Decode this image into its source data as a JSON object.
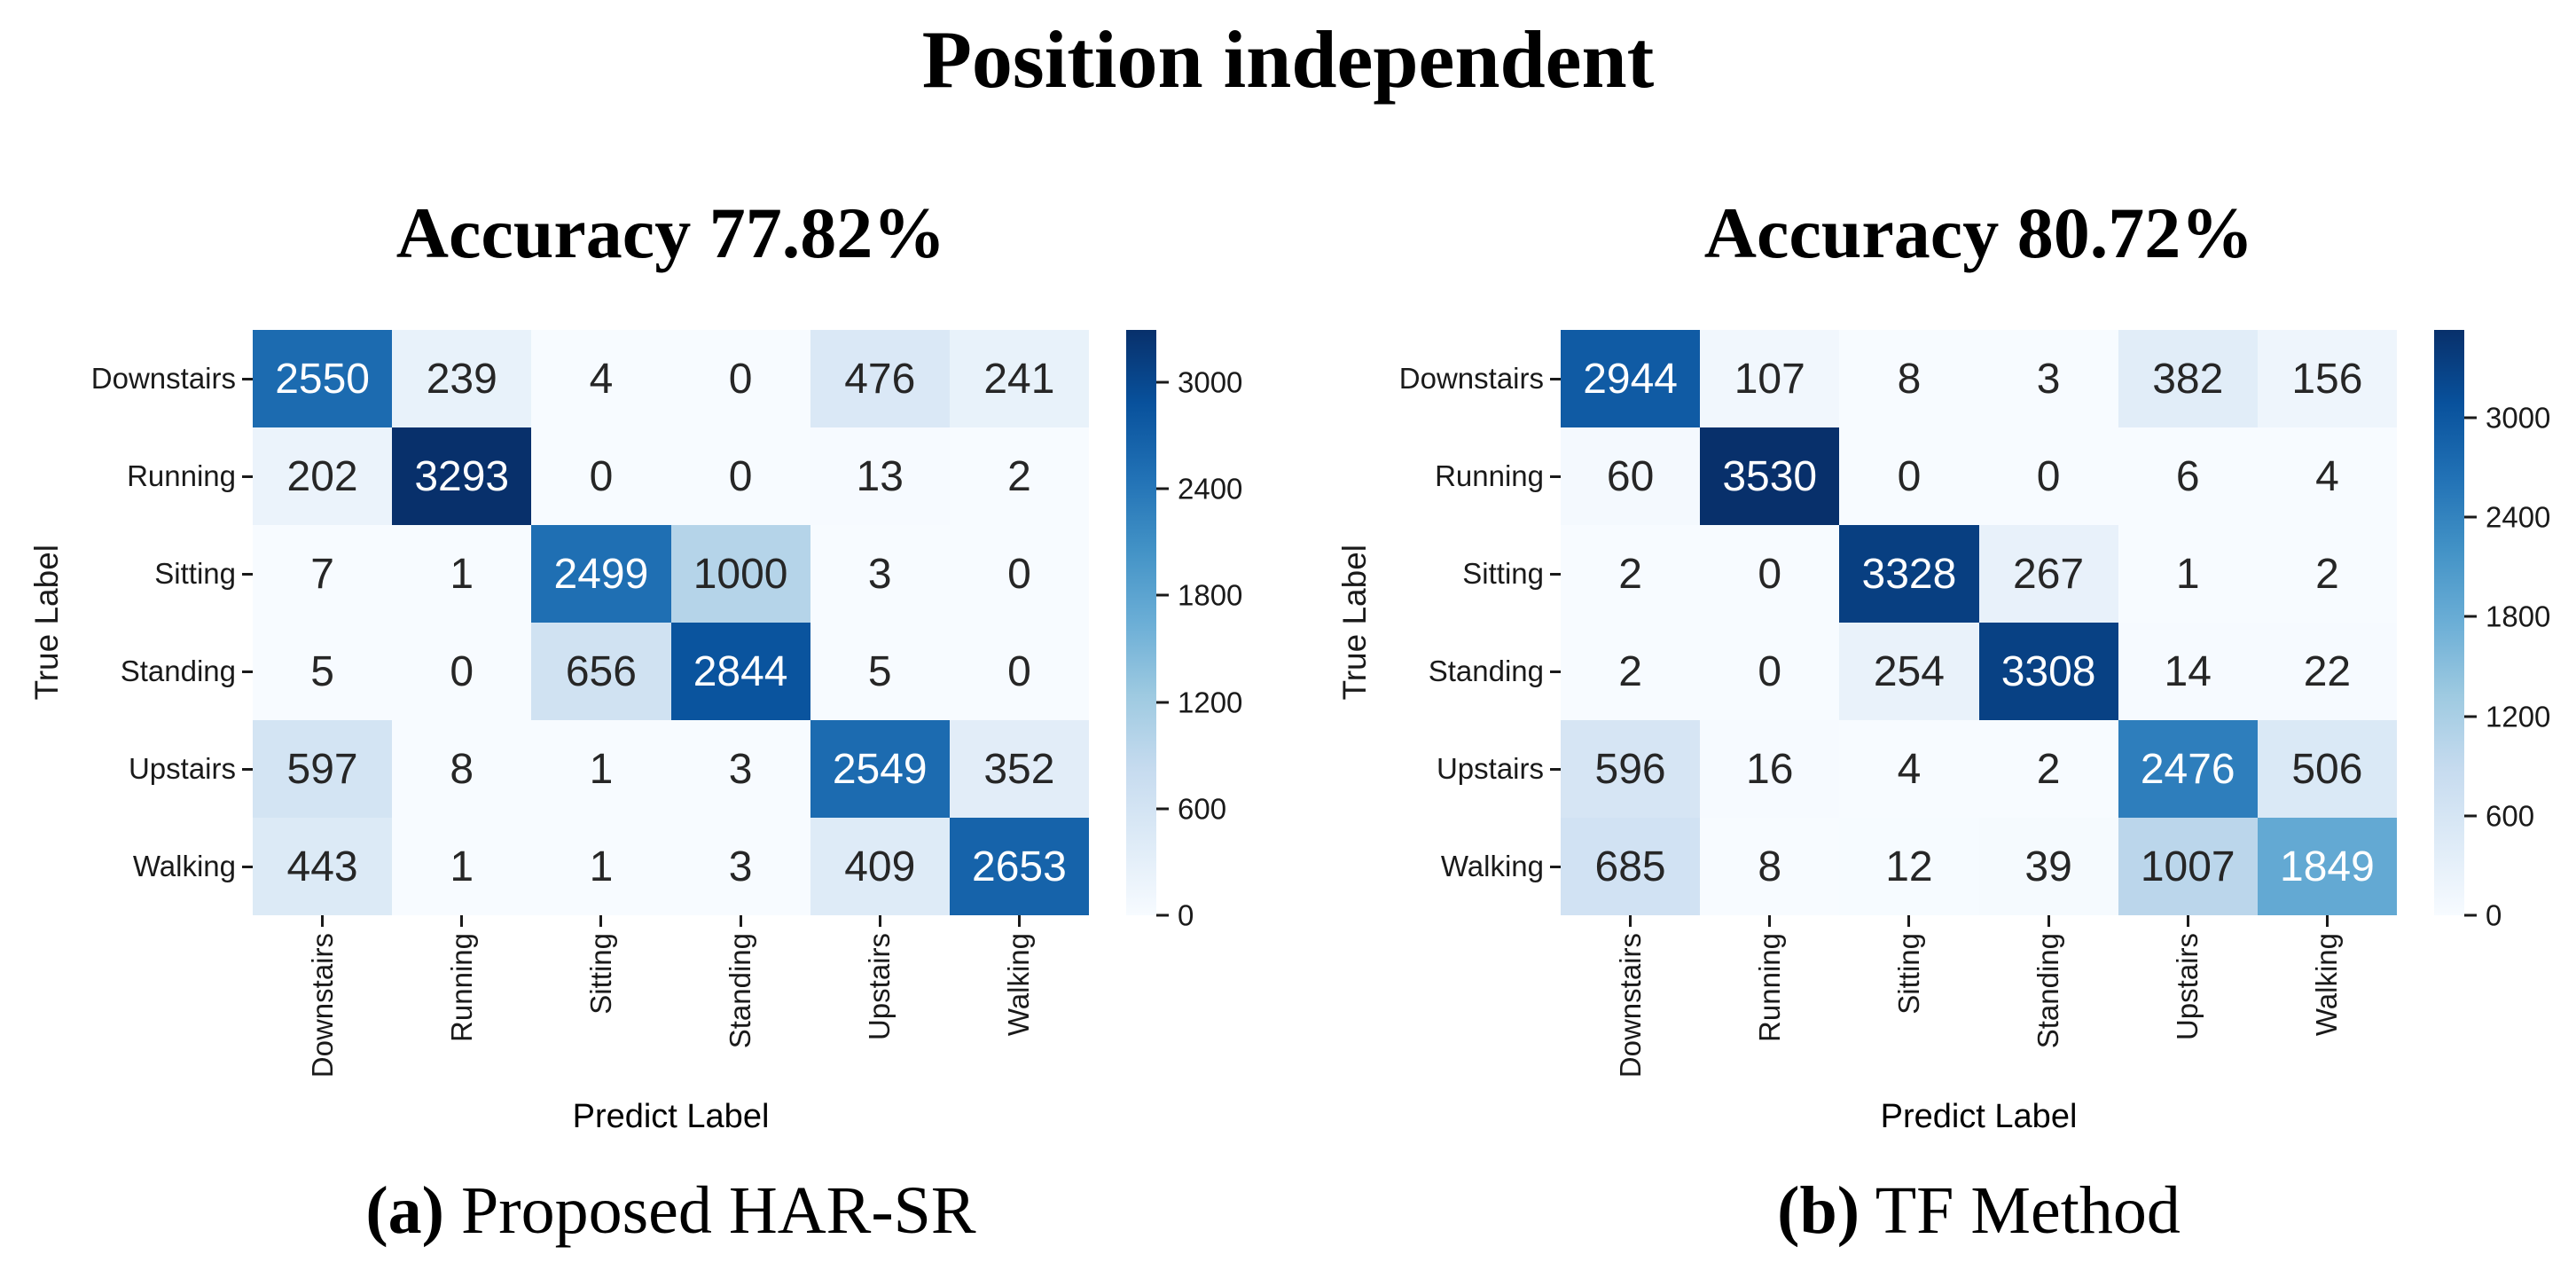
{
  "figure": {
    "title": "Position independent",
    "background": "#ffffff"
  },
  "colors": {
    "colormap_name": "Blues",
    "cmap_stops": [
      "#f7fbff",
      "#deebf7",
      "#c6dbef",
      "#9ecae1",
      "#6baed6",
      "#4292c6",
      "#2171b5",
      "#08519c",
      "#08306b"
    ],
    "annotation_dark": "#262626",
    "annotation_light": "#ffffff",
    "axis_text": "#1a1a1a"
  },
  "chart_data": [
    {
      "type": "heatmap",
      "title": "Accuracy 77.82%",
      "accuracy_pct": 77.82,
      "caption_tag": "(a)",
      "caption_label": "Proposed HAR-SR",
      "xlabel": "Predict Label",
      "ylabel": "True Label",
      "x_categories": [
        "Downstairs",
        "Running",
        "Sitting",
        "Standing",
        "Upstairs",
        "Walking"
      ],
      "y_categories": [
        "Downstairs",
        "Running",
        "Sitting",
        "Standing",
        "Upstairs",
        "Walking"
      ],
      "vmin": 0,
      "colorbar_ticks": [
        0,
        600,
        1200,
        1800,
        2400,
        3000
      ],
      "matrix": [
        [
          2550,
          239,
          4,
          0,
          476,
          241
        ],
        [
          202,
          3293,
          0,
          0,
          13,
          2
        ],
        [
          7,
          1,
          2499,
          1000,
          3,
          0
        ],
        [
          5,
          0,
          656,
          2844,
          5,
          0
        ],
        [
          597,
          8,
          1,
          3,
          2549,
          352
        ],
        [
          443,
          1,
          1,
          3,
          409,
          2653
        ]
      ]
    },
    {
      "type": "heatmap",
      "title": "Accuracy 80.72%",
      "accuracy_pct": 80.72,
      "caption_tag": "(b)",
      "caption_label": "TF Method",
      "xlabel": "Predict Label",
      "ylabel": "True Label",
      "x_categories": [
        "Downstairs",
        "Running",
        "Sitting",
        "Standing",
        "Upstairs",
        "Walking"
      ],
      "y_categories": [
        "Downstairs",
        "Running",
        "Sitting",
        "Standing",
        "Upstairs",
        "Walking"
      ],
      "vmin": 0,
      "colorbar_ticks": [
        0,
        600,
        1200,
        1800,
        2400,
        3000
      ],
      "matrix": [
        [
          2944,
          107,
          8,
          3,
          382,
          156
        ],
        [
          60,
          3530,
          0,
          0,
          6,
          4
        ],
        [
          2,
          0,
          3328,
          267,
          1,
          2
        ],
        [
          2,
          0,
          254,
          3308,
          14,
          22
        ],
        [
          596,
          16,
          4,
          2,
          2476,
          506
        ],
        [
          685,
          8,
          12,
          39,
          1007,
          1849
        ]
      ]
    }
  ]
}
